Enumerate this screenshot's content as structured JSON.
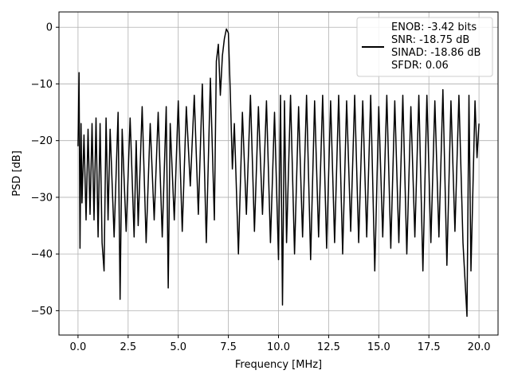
{
  "chart_data": {
    "type": "line",
    "title": "",
    "xlabel": "Frequency [MHz]",
    "ylabel": "PSD [dB]",
    "xlim": [
      -0.95,
      20.95
    ],
    "ylim": [
      -54.3,
      2.7
    ],
    "xticks": [
      0.0,
      2.5,
      5.0,
      7.5,
      10.0,
      12.5,
      15.0,
      17.5,
      20.0
    ],
    "xtick_labels": [
      "0.0",
      "2.5",
      "5.0",
      "7.5",
      "10.0",
      "12.5",
      "15.0",
      "17.5",
      "20.0"
    ],
    "yticks": [
      0,
      -10,
      -20,
      -30,
      -40,
      -50
    ],
    "ytick_labels": [
      "0",
      "−10",
      "−20",
      "−30",
      "−40",
      "−50"
    ],
    "grid": true,
    "legend": {
      "placement": "top-right",
      "entries": [
        "ENOB: -3.42 bits",
        "SNR: -18.75 dB",
        "SINAD: -18.86 dB",
        "SFDR: 0.06"
      ]
    },
    "series": [
      {
        "color": "#000000",
        "x": [
          0.0,
          0.05,
          0.1,
          0.15,
          0.2,
          0.3,
          0.4,
          0.5,
          0.6,
          0.7,
          0.8,
          0.9,
          1.0,
          1.1,
          1.2,
          1.3,
          1.4,
          1.5,
          1.6,
          1.8,
          2.0,
          2.1,
          2.2,
          2.4,
          2.6,
          2.8,
          2.9,
          3.0,
          3.2,
          3.4,
          3.6,
          3.8,
          4.0,
          4.2,
          4.4,
          4.5,
          4.6,
          4.8,
          5.0,
          5.2,
          5.4,
          5.6,
          5.8,
          6.0,
          6.2,
          6.4,
          6.6,
          6.8,
          6.9,
          7.0,
          7.1,
          7.2,
          7.3,
          7.4,
          7.5,
          7.6,
          7.7,
          7.8,
          8.0,
          8.2,
          8.4,
          8.6,
          8.8,
          9.0,
          9.2,
          9.4,
          9.6,
          9.8,
          10.0,
          10.1,
          10.2,
          10.3,
          10.4,
          10.6,
          10.8,
          11.0,
          11.2,
          11.4,
          11.6,
          11.8,
          12.0,
          12.2,
          12.4,
          12.6,
          12.8,
          13.0,
          13.2,
          13.4,
          13.6,
          13.8,
          14.0,
          14.2,
          14.4,
          14.6,
          14.8,
          15.0,
          15.2,
          15.4,
          15.6,
          15.8,
          16.0,
          16.2,
          16.4,
          16.6,
          16.8,
          17.0,
          17.2,
          17.4,
          17.6,
          17.8,
          18.0,
          18.2,
          18.4,
          18.6,
          18.8,
          19.0,
          19.2,
          19.4,
          19.5,
          19.6,
          19.8,
          19.9,
          20.0
        ],
        "y": [
          -21,
          -8,
          -39,
          -17,
          -31,
          -19,
          -34,
          -18,
          -33,
          -17,
          -34,
          -16,
          -37,
          -17,
          -38,
          -43,
          -16,
          -34,
          -18,
          -37,
          -15,
          -48,
          -18,
          -36,
          -16,
          -37,
          -20,
          -35,
          -14,
          -38,
          -17,
          -34,
          -15,
          -37,
          -14,
          -46,
          -17,
          -34,
          -13,
          -36,
          -14,
          -28,
          -12,
          -33,
          -10,
          -38,
          -9,
          -34,
          -6,
          -3,
          -12,
          -5,
          -2,
          -0.3,
          -1,
          -12,
          -25,
          -17,
          -40,
          -15,
          -33,
          -12,
          -36,
          -14,
          -33,
          -13,
          -38,
          -15,
          -41,
          -12,
          -49,
          -13,
          -38,
          -12,
          -40,
          -14,
          -37,
          -12,
          -41,
          -13,
          -37,
          -12,
          -39,
          -13,
          -38,
          -12,
          -40,
          -13,
          -36,
          -12,
          -38,
          -13,
          -37,
          -12,
          -43,
          -14,
          -37,
          -12,
          -39,
          -13,
          -38,
          -12,
          -40,
          -14,
          -37,
          -12,
          -43,
          -12,
          -38,
          -13,
          -37,
          -11,
          -42,
          -13,
          -36,
          -12,
          -38,
          -51,
          -12,
          -43,
          -13,
          -23,
          -17
        ]
      }
    ]
  }
}
